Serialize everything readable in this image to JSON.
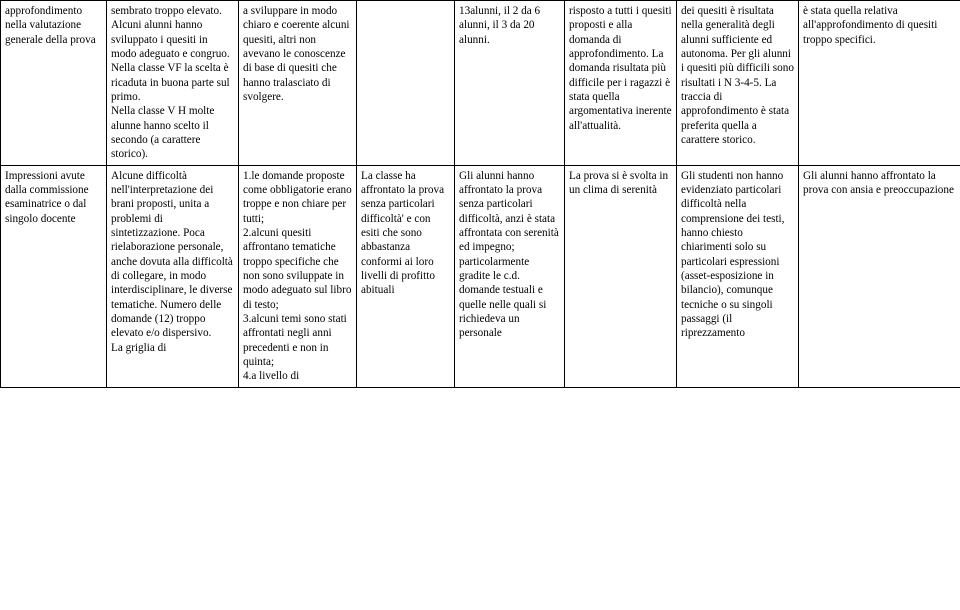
{
  "table": {
    "rows": [
      {
        "cells": [
          "approfondimento nella valutazione generale della prova",
          "sembrato troppo elevato.\nAlcuni alunni hanno sviluppato i quesiti in modo adeguato e congruo.\nNella classe VF la scelta è ricaduta in buona parte sul primo.\nNella classe V H molte alunne hanno scelto il secondo (a carattere storico).",
          "a sviluppare in modo chiaro e coerente alcuni quesiti, altri non avevano le conoscenze di base di quesiti che hanno tralasciato di svolgere.",
          "",
          "13alunni, il 2 da 6 alunni, il 3 da 20 alunni.",
          "risposto a tutti i quesiti proposti e alla domanda di approfondimento. La domanda risultata più difficile per i ragazzi è stata quella argomentativa inerente all'attualità.",
          "dei quesiti è risultata nella generalità degli alunni sufficiente ed autonoma. Per gli alunni i quesiti più difficili sono risultati i N 3-4-5. La traccia di approfondimento è stata preferita quella a carattere storico.",
          "è stata quella relativa all'approfondimento di quesiti troppo specifici."
        ]
      },
      {
        "cells": [
          "Impressioni avute dalla commissione esaminatrice o dal singolo docente",
          "Alcune difficoltà nell'interpretazione dei brani proposti, unita a problemi di sintetizzazione. Poca rielaborazione personale, anche dovuta alla difficoltà di collegare, in modo interdisciplinare, le diverse tematiche. Numero delle domande (12) troppo elevato e/o dispersivo.\nLa griglia di",
          "1.le domande proposte come obbligatorie erano troppe e non chiare per tutti;\n2.alcuni quesiti affrontano tematiche troppo specifiche che non sono sviluppate in modo adeguato sul libro di testo;\n3.alcuni temi sono stati affrontati negli anni precedenti e non in quinta;\n4.a livello di",
          "La classe ha affrontato la prova senza particolari difficoltà' e con esiti che sono abbastanza conformi ai loro livelli di profitto abituali",
          "Gli alunni hanno affrontato la prova senza particolari difficoltà, anzi è stata affrontata con serenità ed impegno; particolarmente gradite le c.d. domande testuali e quelle nelle quali si richiedeva un personale",
          "La prova si è svolta in un clima di serenità",
          "Gli studenti non hanno evidenziato particolari difficoltà nella comprensione dei testi, hanno chiesto chiarimenti solo su particolari espressioni (asset-esposizione in bilancio), comunque tecniche o su singoli passaggi (il riprezzamento",
          "Gli alunni hanno affrontato la prova con ansia e preoccupazione"
        ]
      }
    ]
  }
}
